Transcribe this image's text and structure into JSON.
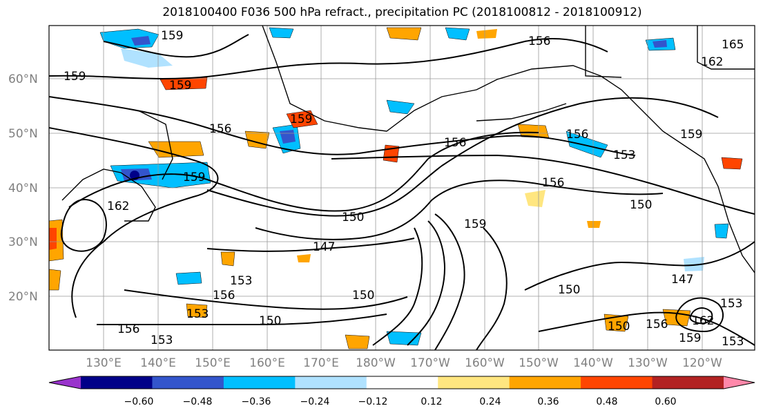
{
  "title": "2018100400 F036 500 hPa refract., precipitation PC (2018100812 - 2018100912)",
  "lat_labels": [
    "60°N",
    "50°N",
    "40°N",
    "30°N",
    "20°N"
  ],
  "lon_labels": [
    "130°E",
    "140°E",
    "150°E",
    "160°E",
    "170°E",
    "180°W",
    "170°W",
    "160°W",
    "150°W",
    "140°W",
    "130°W",
    "120°W"
  ],
  "colorbar": {
    "ticks": [
      "−0.60",
      "−0.48",
      "−0.36",
      "−0.24",
      "−0.12",
      "0.12",
      "0.24",
      "0.36",
      "0.48",
      "0.60"
    ],
    "colors": [
      "#9933cc",
      "#000088",
      "#3355cc",
      "#00bfff",
      "#b0e2ff",
      "#ffffff",
      "#ffe680",
      "#ffa500",
      "#ff4500",
      "#b22222",
      "#ff88aa"
    ]
  },
  "contour_labels": [
    "159",
    "159",
    "159",
    "156",
    "159",
    "159",
    "156",
    "156",
    "153",
    "156",
    "159",
    "162",
    "150",
    "150",
    "147",
    "150",
    "156",
    "153",
    "150",
    "150",
    "147",
    "153",
    "156",
    "162",
    "159",
    "150",
    "153",
    "162",
    "165",
    "159",
    "153",
    "156",
    "153",
    "156"
  ]
}
